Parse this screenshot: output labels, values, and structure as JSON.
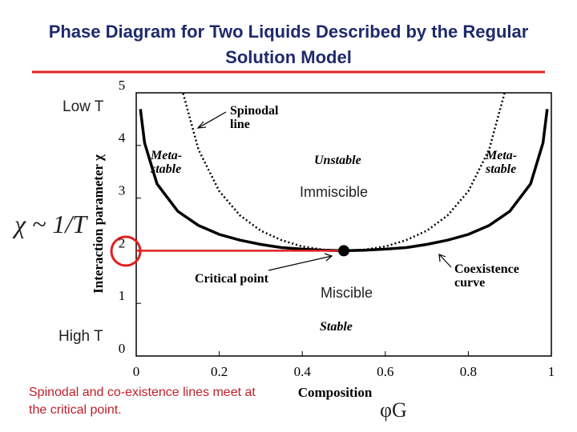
{
  "chart_data": {
    "type": "line",
    "title": "Phase Diagram for Two Liquids Described by the Regular Solution Model",
    "xlabel": "Composition",
    "ylabel": "Interaction parameter χ",
    "x": [
      0.01,
      0.02,
      0.05,
      0.1,
      0.113,
      0.15,
      0.2,
      0.25,
      0.3,
      0.35,
      0.4,
      0.45,
      0.5,
      0.55,
      0.6,
      0.65,
      0.7,
      0.75,
      0.8,
      0.85,
      0.887,
      0.9,
      0.95,
      0.98,
      0.99
    ],
    "series": [
      {
        "color": "#000000",
        "style": "solid",
        "values": [
          4.69,
          4.05,
          3.27,
          2.75,
          2.68,
          2.48,
          2.31,
          2.2,
          2.12,
          2.06,
          2.03,
          2.01,
          2,
          2.01,
          2.03,
          2.06,
          2.12,
          2.2,
          2.31,
          2.48,
          2.68,
          2.75,
          3.27,
          4.05,
          4.69
        ]
      },
      {
        "color": "#000000",
        "style": "dotted",
        "values": [
          null,
          null,
          null,
          null,
          4.99,
          3.92,
          3.13,
          2.67,
          2.38,
          2.2,
          2.08,
          2.02,
          2,
          2.02,
          2.08,
          2.2,
          2.38,
          2.67,
          3.13,
          3.92,
          4.99,
          null,
          null,
          null,
          null
        ]
      }
    ],
    "xlim": [
      0,
      1
    ],
    "ylim": [
      0,
      5
    ],
    "xticks": [
      0,
      0.2,
      0.4,
      0.6,
      0.8,
      1
    ],
    "yticks": [
      0,
      1,
      2,
      3,
      4,
      5
    ],
    "critical_point": {
      "x": 0.5,
      "y": 2,
      "label": "Critical point"
    },
    "annotations": [
      "Spinodal line",
      "Meta-stable",
      "Unstable",
      "Meta-stable",
      "Immiscible",
      "Coexistence curve",
      "Miscible",
      "Stable"
    ],
    "side_labels": [
      "Low T",
      "High T",
      "χ ~ 1/T",
      "φG"
    ],
    "footnote": "Spinodal and co-existence lines meet at the critical point."
  }
}
